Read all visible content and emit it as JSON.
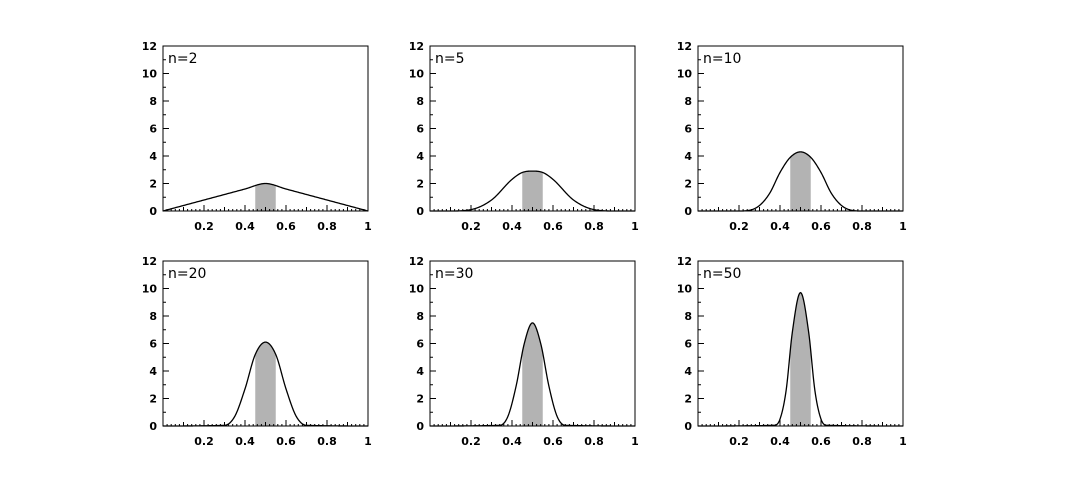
{
  "chart_data": [
    {
      "type": "area",
      "title": "n=2",
      "n": 2,
      "xlim": [
        0,
        1
      ],
      "ylim": [
        0,
        12
      ],
      "x_ticks": [
        "0.2",
        "0.4",
        "0.6",
        "0.8",
        "1"
      ],
      "y_ticks": [
        "0",
        "2",
        "4",
        "6",
        "8",
        "10",
        "12"
      ],
      "shaded_interval": [
        0.45,
        0.55
      ],
      "series": [
        {
          "x": [
            0.0,
            0.1,
            0.2,
            0.3,
            0.4,
            0.5,
            0.6,
            0.7,
            0.8,
            0.9,
            1.0
          ],
          "y": [
            0.0,
            0.4,
            0.8,
            1.2,
            1.6,
            2.0,
            1.6,
            1.2,
            0.8,
            0.4,
            0.0
          ]
        }
      ],
      "grid": false
    },
    {
      "type": "area",
      "title": "n=5",
      "n": 5,
      "xlim": [
        0,
        1
      ],
      "ylim": [
        0,
        12
      ],
      "x_ticks": [
        "0.2",
        "0.4",
        "0.6",
        "0.8",
        "1"
      ],
      "y_ticks": [
        "0",
        "2",
        "4",
        "6",
        "8",
        "10",
        "12"
      ],
      "shaded_interval": [
        0.45,
        0.55
      ],
      "series": [
        {
          "x": [
            0.0,
            0.1,
            0.2,
            0.3,
            0.4,
            0.45,
            0.5,
            0.55,
            0.6,
            0.7,
            0.8,
            0.9,
            1.0
          ],
          "y": [
            0.0,
            0.0,
            0.1,
            0.8,
            2.3,
            2.8,
            2.9,
            2.8,
            2.3,
            0.8,
            0.1,
            0.0,
            0.0
          ]
        }
      ],
      "grid": false
    },
    {
      "type": "area",
      "title": "n=10",
      "n": 10,
      "xlim": [
        0,
        1
      ],
      "ylim": [
        0,
        12
      ],
      "x_ticks": [
        "0.2",
        "0.4",
        "0.6",
        "0.8",
        "1"
      ],
      "y_ticks": [
        "0",
        "2",
        "4",
        "6",
        "8",
        "10",
        "12"
      ],
      "shaded_interval": [
        0.45,
        0.55
      ],
      "series": [
        {
          "x": [
            0.0,
            0.2,
            0.25,
            0.3,
            0.35,
            0.4,
            0.45,
            0.5,
            0.55,
            0.6,
            0.65,
            0.7,
            0.75,
            0.8,
            1.0
          ],
          "y": [
            0.0,
            0.0,
            0.05,
            0.4,
            1.3,
            2.8,
            3.9,
            4.3,
            3.9,
            2.8,
            1.3,
            0.4,
            0.05,
            0.0,
            0.0
          ]
        }
      ],
      "grid": false
    },
    {
      "type": "area",
      "title": "n=20",
      "n": 20,
      "xlim": [
        0,
        1
      ],
      "ylim": [
        0,
        12
      ],
      "x_ticks": [
        "0.2",
        "0.4",
        "0.6",
        "0.8",
        "1"
      ],
      "y_ticks": [
        "0",
        "2",
        "4",
        "6",
        "8",
        "10",
        "12"
      ],
      "shaded_interval": [
        0.45,
        0.55
      ],
      "series": [
        {
          "x": [
            0.0,
            0.3,
            0.35,
            0.4,
            0.45,
            0.5,
            0.55,
            0.6,
            0.65,
            0.7,
            1.0
          ],
          "y": [
            0.0,
            0.05,
            0.7,
            2.7,
            5.2,
            6.1,
            5.2,
            2.7,
            0.7,
            0.05,
            0.0
          ]
        }
      ],
      "grid": false
    },
    {
      "type": "area",
      "title": "n=30",
      "n": 30,
      "xlim": [
        0,
        1
      ],
      "ylim": [
        0,
        12
      ],
      "x_ticks": [
        "0.2",
        "0.4",
        "0.6",
        "0.8",
        "1"
      ],
      "y_ticks": [
        "0",
        "2",
        "4",
        "6",
        "8",
        "10",
        "12"
      ],
      "shaded_interval": [
        0.45,
        0.55
      ],
      "series": [
        {
          "x": [
            0.0,
            0.34,
            0.38,
            0.42,
            0.46,
            0.5,
            0.54,
            0.58,
            0.62,
            0.66,
            1.0
          ],
          "y": [
            0.0,
            0.05,
            0.7,
            2.9,
            6.0,
            7.5,
            6.0,
            2.9,
            0.7,
            0.05,
            0.0
          ]
        }
      ],
      "grid": false
    },
    {
      "type": "area",
      "title": "n=50",
      "n": 50,
      "xlim": [
        0,
        1
      ],
      "ylim": [
        0,
        12
      ],
      "x_ticks": [
        "0.2",
        "0.4",
        "0.6",
        "0.8",
        "1"
      ],
      "y_ticks": [
        "0",
        "2",
        "4",
        "6",
        "8",
        "10",
        "12"
      ],
      "shaded_interval": [
        0.45,
        0.55
      ],
      "series": [
        {
          "x": [
            0.0,
            0.37,
            0.4,
            0.43,
            0.46,
            0.5,
            0.54,
            0.57,
            0.6,
            0.63,
            1.0
          ],
          "y": [
            0.0,
            0.05,
            0.5,
            2.6,
            6.8,
            9.7,
            6.8,
            2.6,
            0.5,
            0.05,
            0.0
          ]
        }
      ],
      "grid": false
    }
  ],
  "colors": {
    "axis": "#000000",
    "curve": "#000000",
    "shade": "#b3b3b3",
    "background": "#ffffff"
  }
}
